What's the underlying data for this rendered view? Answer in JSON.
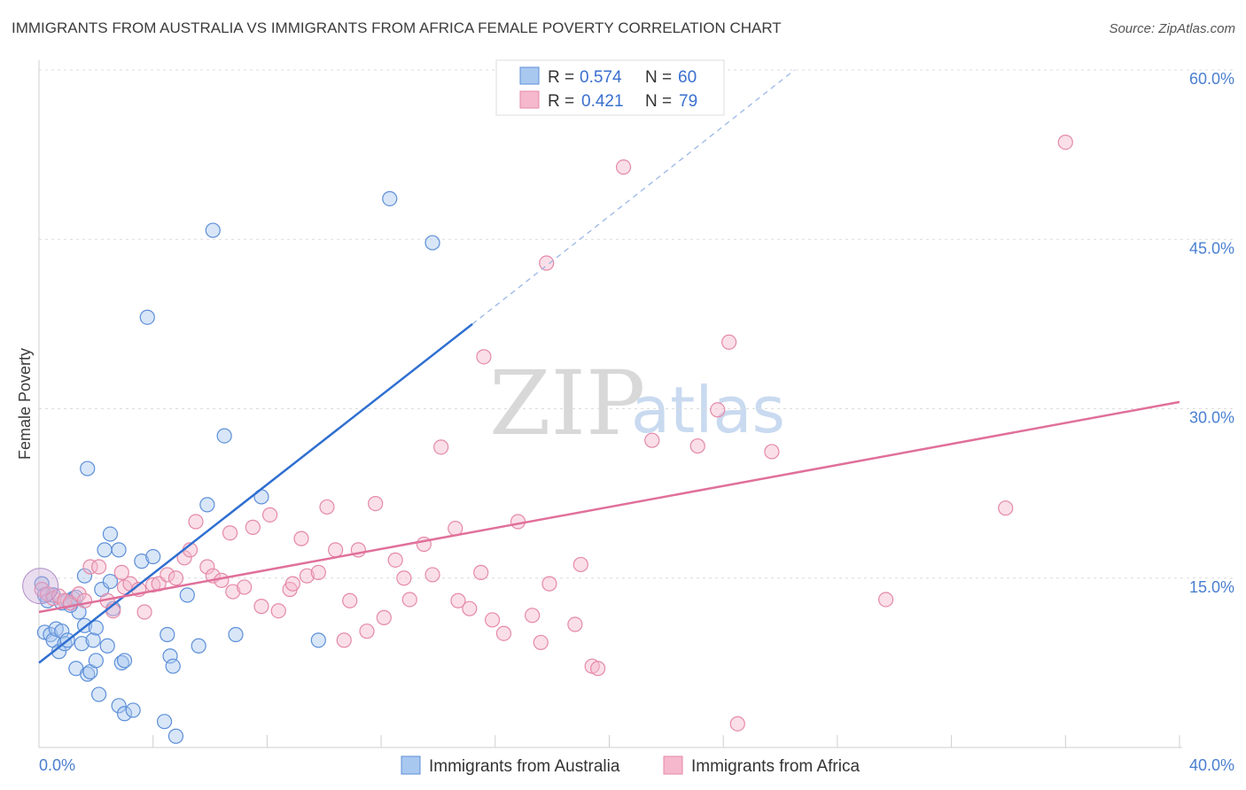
{
  "title": "IMMIGRANTS FROM AUSTRALIA VS IMMIGRANTS FROM AFRICA FEMALE POVERTY CORRELATION CHART",
  "source": "Source: ZipAtlas.com",
  "colors": {
    "australia_fill": "#a9c8f0",
    "australia_stroke": "#5d8fd8",
    "australia_line": "#2f6fd0",
    "africa_fill": "#f5b8cc",
    "africa_stroke": "#e589a8",
    "africa_line": "#e0709a",
    "axis_text": "#4a7fd0"
  },
  "legend": {
    "rows": [
      {
        "r_label": "R = ",
        "r_value": "0.574",
        "n_label": "N = ",
        "n_value": "60"
      },
      {
        "r_label": "R = ",
        "r_value": "0.421",
        "n_label": "N = ",
        "n_value": "79"
      }
    ]
  },
  "watermark": {
    "zip": "ZIP",
    "atlas": "atlas"
  },
  "chart_data": {
    "type": "scatter",
    "xlabel": "",
    "ylabel": "Female Poverty",
    "xlim": [
      0,
      40
    ],
    "ylim": [
      0,
      60
    ],
    "x_tick_labels": [
      "0.0%",
      "40.0%"
    ],
    "y_ticks": [
      15,
      30,
      45,
      60
    ],
    "y_tick_labels": [
      "15.0%",
      "30.0%",
      "45.0%",
      "60.0%"
    ],
    "series": [
      {
        "name": "Immigrants from Australia",
        "trend": {
          "x0": 0,
          "y0": 7.5,
          "x1": 15.2,
          "y1": 37.5,
          "dash_to_x": 26.5,
          "dash_to_y": 60
        },
        "points": [
          [
            0.1,
            14.5
          ],
          [
            0.2,
            13.5
          ],
          [
            0.2,
            10.2
          ],
          [
            0.4,
            10.0
          ],
          [
            0.5,
            9.5
          ],
          [
            0.6,
            10.5
          ],
          [
            0.7,
            8.5
          ],
          [
            0.8,
            10.3
          ],
          [
            0.8,
            12.8
          ],
          [
            0.9,
            9.2
          ],
          [
            1.0,
            13.0
          ],
          [
            1.0,
            9.5
          ],
          [
            1.1,
            12.8
          ],
          [
            1.2,
            13.2
          ],
          [
            1.3,
            7.0
          ],
          [
            1.4,
            12.0
          ],
          [
            1.5,
            9.2
          ],
          [
            1.6,
            10.8
          ],
          [
            1.6,
            15.2
          ],
          [
            1.7,
            6.5
          ],
          [
            1.7,
            24.7
          ],
          [
            1.8,
            6.7
          ],
          [
            1.9,
            9.5
          ],
          [
            2.0,
            10.6
          ],
          [
            2.0,
            7.7
          ],
          [
            2.1,
            4.7
          ],
          [
            2.2,
            14.0
          ],
          [
            2.3,
            17.5
          ],
          [
            2.4,
            9.0
          ],
          [
            2.5,
            18.9
          ],
          [
            2.5,
            14.7
          ],
          [
            2.6,
            12.3
          ],
          [
            2.8,
            17.5
          ],
          [
            2.8,
            3.7
          ],
          [
            2.9,
            7.5
          ],
          [
            3.0,
            7.7
          ],
          [
            3.0,
            3.0
          ],
          [
            3.3,
            3.3
          ],
          [
            3.6,
            16.5
          ],
          [
            3.8,
            38.1
          ],
          [
            4.0,
            16.9
          ],
          [
            4.4,
            2.3
          ],
          [
            4.5,
            10.0
          ],
          [
            4.6,
            8.1
          ],
          [
            4.7,
            7.2
          ],
          [
            4.8,
            1.0
          ],
          [
            5.2,
            13.5
          ],
          [
            5.6,
            9.0
          ],
          [
            5.9,
            21.5
          ],
          [
            6.1,
            45.8
          ],
          [
            6.5,
            27.6
          ],
          [
            6.9,
            10.0
          ],
          [
            7.8,
            22.2
          ],
          [
            9.8,
            9.5
          ],
          [
            12.3,
            48.6
          ],
          [
            13.8,
            44.7
          ],
          [
            0.3,
            13.0
          ],
          [
            1.3,
            13.3
          ],
          [
            0.5,
            13.5
          ],
          [
            1.1,
            12.6
          ]
        ]
      },
      {
        "name": "Immigrants from Africa",
        "trend": {
          "x0": 0,
          "y0": 12.0,
          "x1": 40,
          "y1": 30.6
        },
        "points": [
          [
            0.1,
            14.0
          ],
          [
            0.3,
            13.6
          ],
          [
            0.5,
            13.2
          ],
          [
            0.7,
            13.4
          ],
          [
            0.9,
            13.0
          ],
          [
            1.1,
            12.8
          ],
          [
            1.4,
            13.6
          ],
          [
            1.6,
            13.0
          ],
          [
            1.8,
            16.0
          ],
          [
            2.1,
            16.0
          ],
          [
            2.4,
            13.0
          ],
          [
            2.6,
            12.1
          ],
          [
            2.9,
            15.5
          ],
          [
            3.0,
            14.2
          ],
          [
            3.2,
            14.5
          ],
          [
            3.5,
            14.0
          ],
          [
            3.7,
            12.0
          ],
          [
            4.0,
            14.4
          ],
          [
            4.2,
            14.5
          ],
          [
            4.5,
            15.3
          ],
          [
            4.8,
            15.0
          ],
          [
            5.1,
            16.8
          ],
          [
            5.3,
            17.5
          ],
          [
            5.5,
            20.0
          ],
          [
            5.9,
            16.0
          ],
          [
            6.1,
            15.2
          ],
          [
            6.4,
            14.8
          ],
          [
            6.7,
            19.0
          ],
          [
            6.8,
            13.8
          ],
          [
            7.2,
            14.2
          ],
          [
            7.5,
            19.5
          ],
          [
            7.8,
            12.5
          ],
          [
            8.1,
            20.6
          ],
          [
            8.4,
            12.1
          ],
          [
            8.8,
            14.0
          ],
          [
            8.9,
            14.5
          ],
          [
            9.2,
            18.5
          ],
          [
            9.4,
            15.2
          ],
          [
            9.8,
            15.5
          ],
          [
            10.1,
            21.3
          ],
          [
            10.4,
            17.5
          ],
          [
            10.7,
            9.5
          ],
          [
            10.9,
            13.0
          ],
          [
            11.2,
            17.5
          ],
          [
            11.5,
            10.3
          ],
          [
            11.8,
            21.6
          ],
          [
            12.1,
            11.5
          ],
          [
            12.5,
            16.6
          ],
          [
            12.8,
            15.0
          ],
          [
            13.0,
            13.1
          ],
          [
            13.5,
            18.0
          ],
          [
            13.8,
            15.3
          ],
          [
            14.1,
            26.6
          ],
          [
            14.6,
            19.4
          ],
          [
            14.7,
            13.0
          ],
          [
            15.1,
            12.3
          ],
          [
            15.5,
            15.5
          ],
          [
            15.6,
            34.6
          ],
          [
            15.9,
            11.3
          ],
          [
            16.3,
            10.1
          ],
          [
            16.8,
            20.0
          ],
          [
            17.3,
            11.7
          ],
          [
            17.6,
            9.3
          ],
          [
            17.8,
            42.9
          ],
          [
            17.9,
            14.5
          ],
          [
            18.8,
            10.9
          ],
          [
            19.0,
            16.2
          ],
          [
            19.4,
            7.2
          ],
          [
            19.6,
            7.0
          ],
          [
            20.5,
            51.4
          ],
          [
            21.5,
            27.2
          ],
          [
            23.1,
            26.7
          ],
          [
            23.8,
            29.9
          ],
          [
            24.2,
            35.9
          ],
          [
            24.5,
            2.1
          ],
          [
            25.7,
            26.2
          ],
          [
            29.7,
            13.1
          ],
          [
            33.9,
            21.2
          ],
          [
            36.0,
            53.6
          ]
        ]
      }
    ]
  }
}
